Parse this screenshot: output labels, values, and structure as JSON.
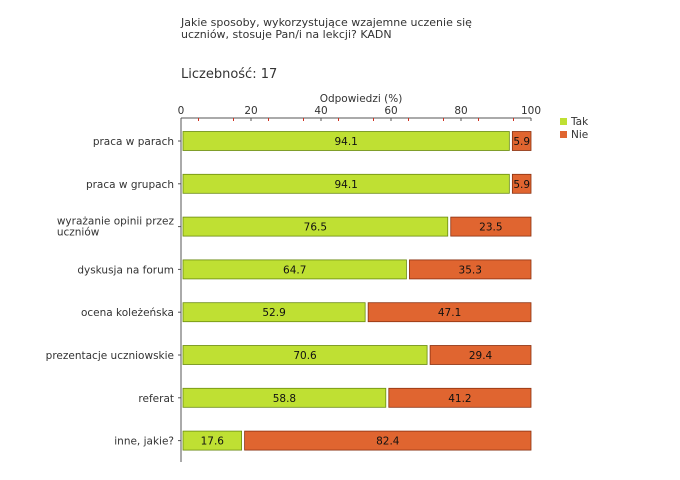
{
  "title": "Jakie sposoby, wykorzystujące wzajemne uczenie się\nuczniów, stosuje Pan/i na lekcji? KADN",
  "count_label": "Liczebność:",
  "count_value": "17",
  "chart_data": {
    "type": "bar",
    "orientation": "horizontal",
    "stacked": true,
    "xlabel": "Odpowiedzi (%)",
    "xlim": [
      0,
      100
    ],
    "xticks": [
      0,
      20,
      40,
      60,
      80,
      100
    ],
    "legend_position": "top-right",
    "categories": [
      "praca w parach",
      "praca w grupach",
      "wyrażanie opinii przez\nuczniów",
      "dyskusja na forum",
      "ocena koleżeńska",
      "prezentacje uczniowskie",
      "referat",
      "inne, jakie?"
    ],
    "series": [
      {
        "name": "Tak",
        "color": "#bfe033",
        "values": [
          94.1,
          94.1,
          76.5,
          64.7,
          52.9,
          70.6,
          58.8,
          17.6
        ]
      },
      {
        "name": "Nie",
        "color": "#e06530",
        "values": [
          5.9,
          5.9,
          23.5,
          35.3,
          47.1,
          29.4,
          41.2,
          82.4
        ]
      }
    ]
  }
}
